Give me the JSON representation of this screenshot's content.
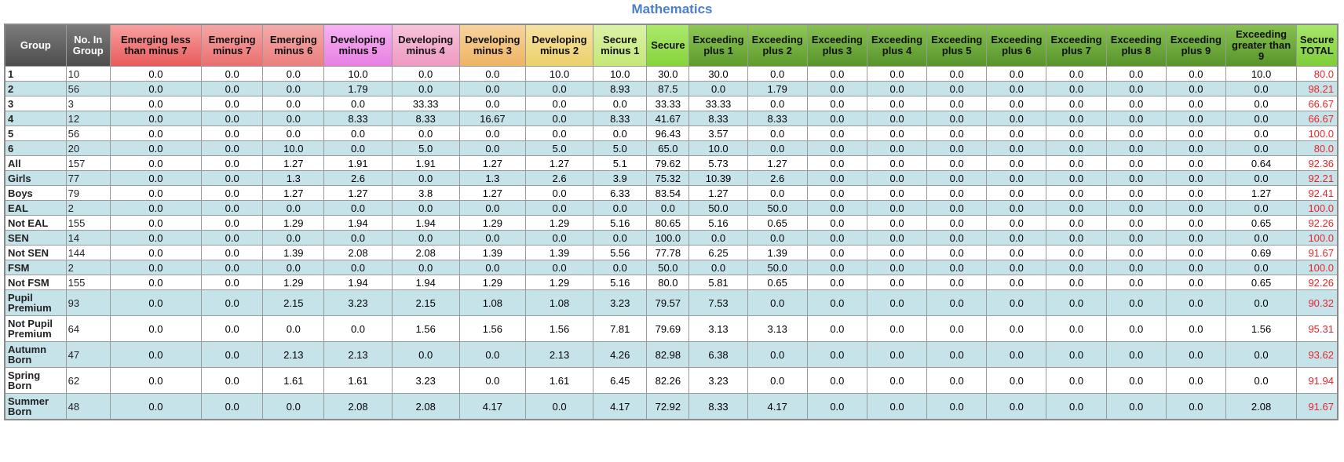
{
  "title": "Mathematics",
  "columns": [
    "Group",
    "No. In Group",
    "Emerging less than minus 7",
    "Emerging minus 7",
    "Emerging minus 6",
    "Developing minus 5",
    "Developing minus 4",
    "Developing minus 3",
    "Developing minus 2",
    "Secure minus 1",
    "Secure",
    "Exceeding plus 1",
    "Exceeding plus 2",
    "Exceeding plus 3",
    "Exceeding plus 4",
    "Exceeding plus 5",
    "Exceeding plus 6",
    "Exceeding plus 7",
    "Exceeding plus 8",
    "Exceeding plus 9",
    "Exceeding greater than 9",
    "Secure TOTAL"
  ],
  "colors": {
    "title": "#4a7fcf",
    "total_text": "#e8262a",
    "row_alt": "#c6e3ea"
  },
  "rows": [
    {
      "group": "1",
      "n": "10",
      "vals": [
        "0.0",
        "0.0",
        "0.0",
        "10.0",
        "0.0",
        "0.0",
        "10.0",
        "10.0",
        "30.0",
        "30.0",
        "0.0",
        "0.0",
        "0.0",
        "0.0",
        "0.0",
        "0.0",
        "0.0",
        "0.0",
        "10.0"
      ],
      "total": "80.0"
    },
    {
      "group": "2",
      "n": "56",
      "vals": [
        "0.0",
        "0.0",
        "0.0",
        "1.79",
        "0.0",
        "0.0",
        "0.0",
        "8.93",
        "87.5",
        "0.0",
        "1.79",
        "0.0",
        "0.0",
        "0.0",
        "0.0",
        "0.0",
        "0.0",
        "0.0",
        "0.0"
      ],
      "total": "98.21"
    },
    {
      "group": "3",
      "n": "3",
      "vals": [
        "0.0",
        "0.0",
        "0.0",
        "0.0",
        "33.33",
        "0.0",
        "0.0",
        "0.0",
        "33.33",
        "33.33",
        "0.0",
        "0.0",
        "0.0",
        "0.0",
        "0.0",
        "0.0",
        "0.0",
        "0.0",
        "0.0"
      ],
      "total": "66.67"
    },
    {
      "group": "4",
      "n": "12",
      "vals": [
        "0.0",
        "0.0",
        "0.0",
        "8.33",
        "8.33",
        "16.67",
        "0.0",
        "8.33",
        "41.67",
        "8.33",
        "8.33",
        "0.0",
        "0.0",
        "0.0",
        "0.0",
        "0.0",
        "0.0",
        "0.0",
        "0.0"
      ],
      "total": "66.67"
    },
    {
      "group": "5",
      "n": "56",
      "vals": [
        "0.0",
        "0.0",
        "0.0",
        "0.0",
        "0.0",
        "0.0",
        "0.0",
        "0.0",
        "96.43",
        "3.57",
        "0.0",
        "0.0",
        "0.0",
        "0.0",
        "0.0",
        "0.0",
        "0.0",
        "0.0",
        "0.0"
      ],
      "total": "100.0"
    },
    {
      "group": "6",
      "n": "20",
      "vals": [
        "0.0",
        "0.0",
        "10.0",
        "0.0",
        "5.0",
        "0.0",
        "5.0",
        "5.0",
        "65.0",
        "10.0",
        "0.0",
        "0.0",
        "0.0",
        "0.0",
        "0.0",
        "0.0",
        "0.0",
        "0.0",
        "0.0"
      ],
      "total": "80.0"
    },
    {
      "group": "All",
      "n": "157",
      "vals": [
        "0.0",
        "0.0",
        "1.27",
        "1.91",
        "1.91",
        "1.27",
        "1.27",
        "5.1",
        "79.62",
        "5.73",
        "1.27",
        "0.0",
        "0.0",
        "0.0",
        "0.0",
        "0.0",
        "0.0",
        "0.0",
        "0.64"
      ],
      "total": "92.36"
    },
    {
      "group": "Girls",
      "n": "77",
      "vals": [
        "0.0",
        "0.0",
        "1.3",
        "2.6",
        "0.0",
        "1.3",
        "2.6",
        "3.9",
        "75.32",
        "10.39",
        "2.6",
        "0.0",
        "0.0",
        "0.0",
        "0.0",
        "0.0",
        "0.0",
        "0.0",
        "0.0"
      ],
      "total": "92.21"
    },
    {
      "group": "Boys",
      "n": "79",
      "vals": [
        "0.0",
        "0.0",
        "1.27",
        "1.27",
        "3.8",
        "1.27",
        "0.0",
        "6.33",
        "83.54",
        "1.27",
        "0.0",
        "0.0",
        "0.0",
        "0.0",
        "0.0",
        "0.0",
        "0.0",
        "0.0",
        "1.27"
      ],
      "total": "92.41"
    },
    {
      "group": "EAL",
      "n": "2",
      "vals": [
        "0.0",
        "0.0",
        "0.0",
        "0.0",
        "0.0",
        "0.0",
        "0.0",
        "0.0",
        "0.0",
        "50.0",
        "50.0",
        "0.0",
        "0.0",
        "0.0",
        "0.0",
        "0.0",
        "0.0",
        "0.0",
        "0.0"
      ],
      "total": "100.0"
    },
    {
      "group": "Not EAL",
      "n": "155",
      "vals": [
        "0.0",
        "0.0",
        "1.29",
        "1.94",
        "1.94",
        "1.29",
        "1.29",
        "5.16",
        "80.65",
        "5.16",
        "0.65",
        "0.0",
        "0.0",
        "0.0",
        "0.0",
        "0.0",
        "0.0",
        "0.0",
        "0.65"
      ],
      "total": "92.26"
    },
    {
      "group": "SEN",
      "n": "14",
      "vals": [
        "0.0",
        "0.0",
        "0.0",
        "0.0",
        "0.0",
        "0.0",
        "0.0",
        "0.0",
        "100.0",
        "0.0",
        "0.0",
        "0.0",
        "0.0",
        "0.0",
        "0.0",
        "0.0",
        "0.0",
        "0.0",
        "0.0"
      ],
      "total": "100.0"
    },
    {
      "group": "Not SEN",
      "n": "144",
      "vals": [
        "0.0",
        "0.0",
        "1.39",
        "2.08",
        "2.08",
        "1.39",
        "1.39",
        "5.56",
        "77.78",
        "6.25",
        "1.39",
        "0.0",
        "0.0",
        "0.0",
        "0.0",
        "0.0",
        "0.0",
        "0.0",
        "0.69"
      ],
      "total": "91.67"
    },
    {
      "group": "FSM",
      "n": "2",
      "vals": [
        "0.0",
        "0.0",
        "0.0",
        "0.0",
        "0.0",
        "0.0",
        "0.0",
        "0.0",
        "50.0",
        "0.0",
        "50.0",
        "0.0",
        "0.0",
        "0.0",
        "0.0",
        "0.0",
        "0.0",
        "0.0",
        "0.0"
      ],
      "total": "100.0"
    },
    {
      "group": "Not FSM",
      "n": "155",
      "vals": [
        "0.0",
        "0.0",
        "1.29",
        "1.94",
        "1.94",
        "1.29",
        "1.29",
        "5.16",
        "80.0",
        "5.81",
        "0.65",
        "0.0",
        "0.0",
        "0.0",
        "0.0",
        "0.0",
        "0.0",
        "0.0",
        "0.65"
      ],
      "total": "92.26"
    },
    {
      "group": "Pupil Premium",
      "n": "93",
      "vals": [
        "0.0",
        "0.0",
        "2.15",
        "3.23",
        "2.15",
        "1.08",
        "1.08",
        "3.23",
        "79.57",
        "7.53",
        "0.0",
        "0.0",
        "0.0",
        "0.0",
        "0.0",
        "0.0",
        "0.0",
        "0.0",
        "0.0"
      ],
      "total": "90.32"
    },
    {
      "group": "Not Pupil Premium",
      "n": "64",
      "vals": [
        "0.0",
        "0.0",
        "0.0",
        "0.0",
        "1.56",
        "1.56",
        "1.56",
        "7.81",
        "79.69",
        "3.13",
        "3.13",
        "0.0",
        "0.0",
        "0.0",
        "0.0",
        "0.0",
        "0.0",
        "0.0",
        "1.56"
      ],
      "total": "95.31"
    },
    {
      "group": "Autumn Born",
      "n": "47",
      "vals": [
        "0.0",
        "0.0",
        "2.13",
        "2.13",
        "0.0",
        "0.0",
        "2.13",
        "4.26",
        "82.98",
        "6.38",
        "0.0",
        "0.0",
        "0.0",
        "0.0",
        "0.0",
        "0.0",
        "0.0",
        "0.0",
        "0.0"
      ],
      "total": "93.62"
    },
    {
      "group": "Spring Born",
      "n": "62",
      "vals": [
        "0.0",
        "0.0",
        "1.61",
        "1.61",
        "3.23",
        "0.0",
        "1.61",
        "6.45",
        "82.26",
        "3.23",
        "0.0",
        "0.0",
        "0.0",
        "0.0",
        "0.0",
        "0.0",
        "0.0",
        "0.0",
        "0.0"
      ],
      "total": "91.94"
    },
    {
      "group": "Summer Born",
      "n": "48",
      "vals": [
        "0.0",
        "0.0",
        "0.0",
        "2.08",
        "2.08",
        "4.17",
        "0.0",
        "4.17",
        "72.92",
        "8.33",
        "4.17",
        "0.0",
        "0.0",
        "0.0",
        "0.0",
        "0.0",
        "0.0",
        "0.0",
        "2.08"
      ],
      "total": "91.67"
    }
  ]
}
